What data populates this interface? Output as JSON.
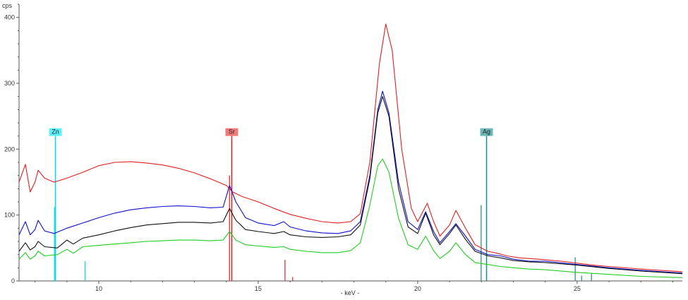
{
  "chart_data": {
    "type": "line",
    "ylabel": "cps",
    "xlabel": "- keV -",
    "xlim": [
      7.5,
      28.3
    ],
    "ylim": [
      0,
      420
    ],
    "x_ticks": [
      10,
      15,
      20,
      25
    ],
    "y_ticks": [
      0,
      100,
      200,
      300,
      400
    ],
    "grid": false,
    "series": [
      {
        "color": "#e02020",
        "values": [
          [
            7.5,
            150
          ],
          [
            7.7,
            177
          ],
          [
            7.85,
            135
          ],
          [
            8.0,
            150
          ],
          [
            8.1,
            168
          ],
          [
            8.3,
            156
          ],
          [
            8.6,
            150
          ],
          [
            9.0,
            156
          ],
          [
            9.5,
            165
          ],
          [
            10.0,
            175
          ],
          [
            10.5,
            180
          ],
          [
            11.0,
            181
          ],
          [
            11.5,
            179
          ],
          [
            12.0,
            176
          ],
          [
            12.5,
            171
          ],
          [
            13.0,
            164
          ],
          [
            13.5,
            155
          ],
          [
            14.0,
            145
          ],
          [
            14.2,
            135
          ],
          [
            14.5,
            128
          ],
          [
            15.0,
            120
          ],
          [
            15.5,
            110
          ],
          [
            16.0,
            101
          ],
          [
            16.5,
            95
          ],
          [
            17.0,
            90
          ],
          [
            17.5,
            88
          ],
          [
            17.9,
            90
          ],
          [
            18.2,
            102
          ],
          [
            18.5,
            180
          ],
          [
            18.8,
            330
          ],
          [
            19.0,
            390
          ],
          [
            19.2,
            350
          ],
          [
            19.5,
            200
          ],
          [
            19.8,
            110
          ],
          [
            20.0,
            90
          ],
          [
            20.3,
            118
          ],
          [
            20.5,
            90
          ],
          [
            20.7,
            68
          ],
          [
            21.0,
            85
          ],
          [
            21.2,
            107
          ],
          [
            21.5,
            80
          ],
          [
            21.8,
            55
          ],
          [
            22.2,
            45
          ],
          [
            22.5,
            42
          ],
          [
            22.8,
            38
          ],
          [
            23.2,
            35
          ],
          [
            23.8,
            33
          ],
          [
            24.5,
            30
          ],
          [
            25.0,
            27
          ],
          [
            25.5,
            24
          ],
          [
            26.0,
            22
          ],
          [
            27.0,
            18
          ],
          [
            28.3,
            14
          ]
        ]
      },
      {
        "color": "#1010c8",
        "values": [
          [
            7.5,
            70
          ],
          [
            7.7,
            90
          ],
          [
            7.85,
            70
          ],
          [
            8.0,
            78
          ],
          [
            8.1,
            92
          ],
          [
            8.3,
            76
          ],
          [
            8.6,
            72
          ],
          [
            9.0,
            80
          ],
          [
            9.5,
            88
          ],
          [
            10.0,
            96
          ],
          [
            10.5,
            103
          ],
          [
            11.0,
            108
          ],
          [
            11.5,
            111
          ],
          [
            12.0,
            113
          ],
          [
            12.5,
            114
          ],
          [
            13.0,
            113
          ],
          [
            13.5,
            111
          ],
          [
            13.9,
            112
          ],
          [
            14.1,
            145
          ],
          [
            14.3,
            120
          ],
          [
            14.6,
            96
          ],
          [
            15.0,
            88
          ],
          [
            15.5,
            84
          ],
          [
            15.8,
            90
          ],
          [
            16.0,
            82
          ],
          [
            16.5,
            76
          ],
          [
            17.0,
            73
          ],
          [
            17.5,
            72
          ],
          [
            17.9,
            76
          ],
          [
            18.2,
            90
          ],
          [
            18.5,
            160
          ],
          [
            18.75,
            260
          ],
          [
            18.9,
            288
          ],
          [
            19.1,
            255
          ],
          [
            19.4,
            150
          ],
          [
            19.7,
            90
          ],
          [
            20.0,
            78
          ],
          [
            20.25,
            105
          ],
          [
            20.5,
            75
          ],
          [
            20.7,
            58
          ],
          [
            21.0,
            75
          ],
          [
            21.2,
            87
          ],
          [
            21.5,
            68
          ],
          [
            21.8,
            48
          ],
          [
            22.2,
            40
          ],
          [
            22.6,
            38
          ],
          [
            23.0,
            33
          ],
          [
            23.5,
            30
          ],
          [
            24.0,
            30
          ],
          [
            25.0,
            25
          ],
          [
            26.0,
            20
          ],
          [
            27.0,
            16
          ],
          [
            28.3,
            12
          ]
        ]
      },
      {
        "color": "#111111",
        "values": [
          [
            7.5,
            45
          ],
          [
            7.7,
            58
          ],
          [
            7.85,
            47
          ],
          [
            8.0,
            52
          ],
          [
            8.1,
            60
          ],
          [
            8.3,
            52
          ],
          [
            8.7,
            50
          ],
          [
            9.0,
            62
          ],
          [
            9.2,
            56
          ],
          [
            9.5,
            65
          ],
          [
            10.0,
            70
          ],
          [
            10.5,
            76
          ],
          [
            11.0,
            81
          ],
          [
            11.5,
            85
          ],
          [
            12.0,
            87
          ],
          [
            12.5,
            89
          ],
          [
            13.0,
            89
          ],
          [
            13.5,
            88
          ],
          [
            13.9,
            90
          ],
          [
            14.1,
            110
          ],
          [
            14.3,
            92
          ],
          [
            14.6,
            78
          ],
          [
            15.0,
            75
          ],
          [
            15.5,
            72
          ],
          [
            15.8,
            75
          ],
          [
            16.0,
            70
          ],
          [
            16.5,
            67
          ],
          [
            17.0,
            66
          ],
          [
            17.5,
            67
          ],
          [
            17.9,
            70
          ],
          [
            18.2,
            85
          ],
          [
            18.5,
            155
          ],
          [
            18.75,
            255
          ],
          [
            18.9,
            280
          ],
          [
            19.1,
            250
          ],
          [
            19.4,
            140
          ],
          [
            19.7,
            82
          ],
          [
            20.0,
            72
          ],
          [
            20.25,
            103
          ],
          [
            20.5,
            70
          ],
          [
            20.7,
            55
          ],
          [
            21.0,
            72
          ],
          [
            21.2,
            85
          ],
          [
            21.5,
            63
          ],
          [
            21.8,
            45
          ],
          [
            22.2,
            38
          ],
          [
            22.6,
            35
          ],
          [
            23.0,
            31
          ],
          [
            23.5,
            29
          ],
          [
            24.0,
            28
          ],
          [
            25.0,
            24
          ],
          [
            26.0,
            19
          ],
          [
            27.0,
            15
          ],
          [
            28.3,
            11
          ]
        ]
      },
      {
        "color": "#22cc22",
        "values": [
          [
            7.5,
            33
          ],
          [
            7.7,
            43
          ],
          [
            7.85,
            33
          ],
          [
            8.0,
            38
          ],
          [
            8.1,
            45
          ],
          [
            8.3,
            38
          ],
          [
            8.7,
            40
          ],
          [
            9.0,
            48
          ],
          [
            9.2,
            42
          ],
          [
            9.5,
            52
          ],
          [
            10.0,
            54
          ],
          [
            10.5,
            56
          ],
          [
            11.0,
            58
          ],
          [
            11.5,
            60
          ],
          [
            12.0,
            61
          ],
          [
            12.5,
            62
          ],
          [
            13.0,
            62
          ],
          [
            13.5,
            61
          ],
          [
            13.9,
            62
          ],
          [
            14.1,
            75
          ],
          [
            14.3,
            62
          ],
          [
            14.6,
            55
          ],
          [
            15.0,
            53
          ],
          [
            15.5,
            51
          ],
          [
            15.8,
            52
          ],
          [
            16.0,
            48
          ],
          [
            16.5,
            45
          ],
          [
            17.0,
            43
          ],
          [
            17.5,
            43
          ],
          [
            17.9,
            46
          ],
          [
            18.2,
            58
          ],
          [
            18.5,
            115
          ],
          [
            18.75,
            175
          ],
          [
            18.9,
            185
          ],
          [
            19.1,
            165
          ],
          [
            19.4,
            95
          ],
          [
            19.7,
            55
          ],
          [
            20.0,
            48
          ],
          [
            20.25,
            68
          ],
          [
            20.5,
            46
          ],
          [
            20.7,
            34
          ],
          [
            21.0,
            45
          ],
          [
            21.2,
            58
          ],
          [
            21.5,
            40
          ],
          [
            21.8,
            28
          ],
          [
            22.2,
            25
          ],
          [
            22.6,
            22
          ],
          [
            23.0,
            20
          ],
          [
            23.5,
            18
          ],
          [
            24.0,
            17
          ],
          [
            25.0,
            13
          ],
          [
            26.0,
            10
          ],
          [
            27.0,
            7
          ],
          [
            28.3,
            5
          ]
        ]
      }
    ],
    "element_markers": [
      {
        "label": "Zn",
        "energy": 8.64,
        "height": 220,
        "color": "#00d8e8",
        "tag_bg": "#5ef0f8"
      },
      {
        "label": "Sr",
        "energy": 14.17,
        "height": 220,
        "color": "#e02020",
        "tag_bg": "#f07a7a"
      },
      {
        "label": "Ag",
        "energy": 22.16,
        "height": 220,
        "color": "#1a8a8a",
        "tag_bg": "#6bb8b8"
      }
    ],
    "minor_lines": [
      {
        "energy": 8.61,
        "height": 112,
        "color": "#00d8e8"
      },
      {
        "energy": 9.57,
        "height": 30,
        "color": "#00d8e8"
      },
      {
        "energy": 14.1,
        "height": 160,
        "color": "#e02020"
      },
      {
        "energy": 15.84,
        "height": 32,
        "color": "#e02020"
      },
      {
        "energy": 16.08,
        "height": 6,
        "color": "#e02020"
      },
      {
        "energy": 21.99,
        "height": 115,
        "color": "#1a8a8a"
      },
      {
        "energy": 24.94,
        "height": 36,
        "color": "#1a8a8a"
      },
      {
        "energy": 25.14,
        "height": 8,
        "color": "#1a8a8a"
      },
      {
        "energy": 25.45,
        "height": 12,
        "color": "#1a8a8a"
      }
    ]
  }
}
